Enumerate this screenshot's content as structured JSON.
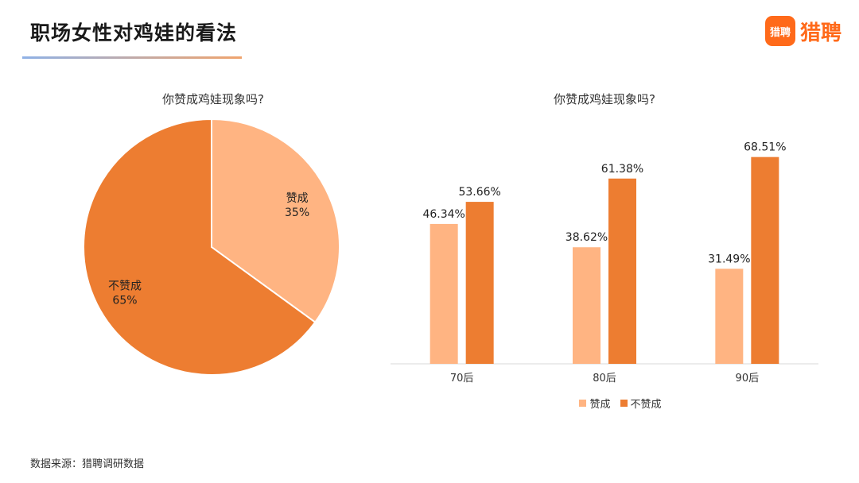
{
  "header": {
    "title": "职场女性对鸡娃的看法",
    "logo_badge": "猎聘",
    "logo_text": "猎聘"
  },
  "colors": {
    "approve": "#FFB482",
    "disapprove": "#ED7D31",
    "logo": "#FF6A1A"
  },
  "chart_data": [
    {
      "type": "pie",
      "title": "你赞成鸡娃现象吗?",
      "slices": [
        {
          "label": "赞成",
          "value": 35,
          "value_label": "35%",
          "color": "#FFB482"
        },
        {
          "label": "不赞成",
          "value": 65,
          "value_label": "65%",
          "color": "#ED7D31"
        }
      ]
    },
    {
      "type": "bar",
      "title": "你赞成鸡娃现象吗?",
      "categories": [
        "70后",
        "80后",
        "90后"
      ],
      "series": [
        {
          "name": "赞成",
          "values": [
            46.34,
            38.62,
            31.49
          ],
          "labels": [
            "46.34%",
            "38.62%",
            "31.49%"
          ],
          "color": "#FFB482"
        },
        {
          "name": "不赞成",
          "values": [
            53.66,
            61.38,
            68.51
          ],
          "labels": [
            "53.66%",
            "61.38%",
            "68.51%"
          ],
          "color": "#ED7D31"
        }
      ],
      "ylim": [
        0,
        100
      ],
      "legend_position": "bottom"
    }
  ],
  "footer": {
    "source": "数据来源：猎聘调研数据"
  }
}
